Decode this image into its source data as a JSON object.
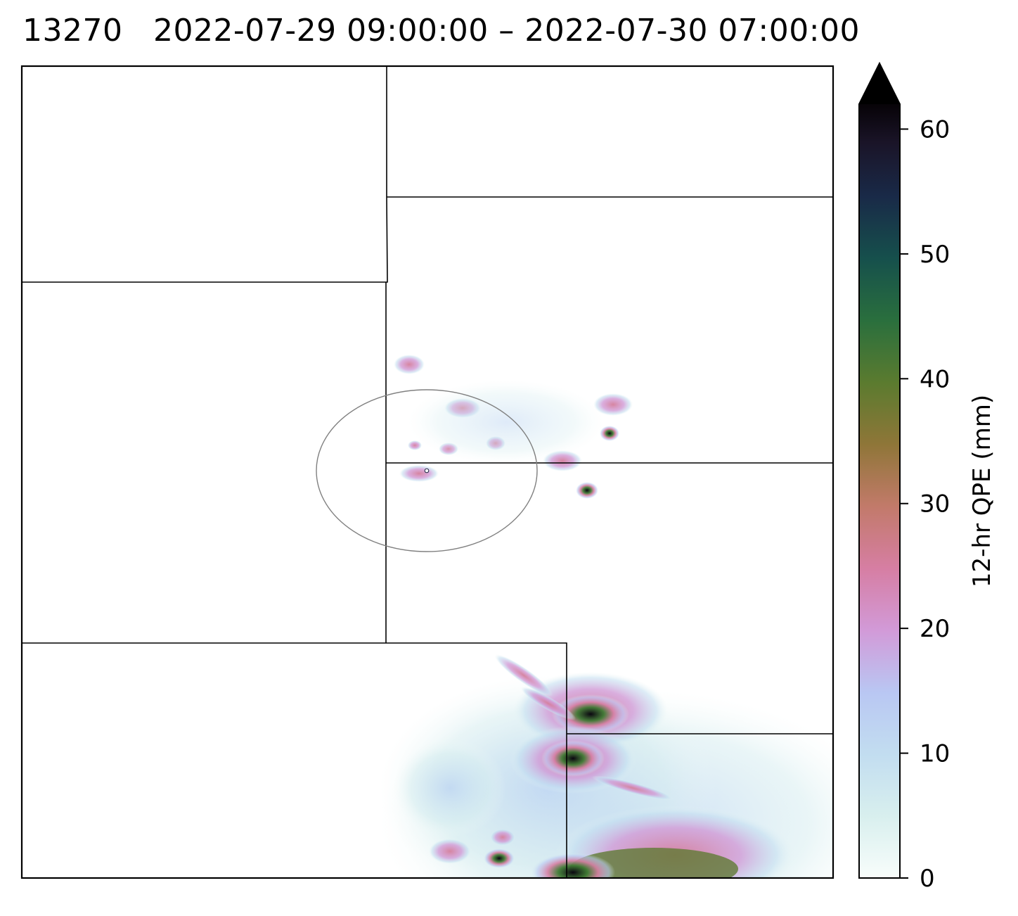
{
  "title": {
    "station_id": "13270",
    "time_range": "2022-07-29 09:00:00 – 2022-07-30 07:00:00"
  },
  "colorbar": {
    "label": "12-hr QPE (mm)",
    "ticks": [
      "0",
      "10",
      "20",
      "30",
      "40",
      "50",
      "60"
    ],
    "tick_values": [
      0,
      10,
      20,
      30,
      40,
      50,
      60
    ],
    "min": 0,
    "max": 62,
    "extend": "max",
    "colormap": "cubehelix_r",
    "colors": [
      "#f6fbf8",
      "#c9e9ee",
      "#b8c8f2",
      "#d398d8",
      "#d47e9c",
      "#b47060",
      "#7a7532",
      "#4e7a30",
      "#24673e",
      "#19474c",
      "#1b2440",
      "#170f1f",
      "#000000"
    ]
  },
  "map": {
    "boundaries": "black state/county lines",
    "range_ring_color": "#808080",
    "radar_marker": "small white dot inside ring"
  }
}
